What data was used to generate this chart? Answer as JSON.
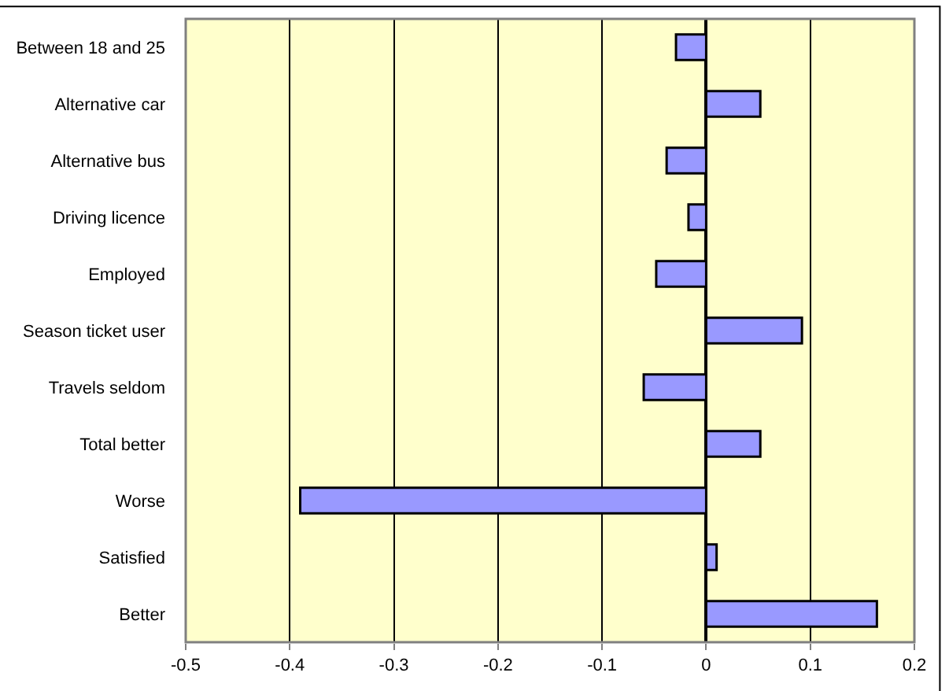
{
  "chart_data": {
    "type": "bar",
    "orientation": "horizontal",
    "categories": [
      "Between 18 and 25",
      "Alternative car",
      "Alternative bus",
      "Driving licence",
      "Employed",
      "Season ticket user",
      "Travels seldom",
      "Total better",
      "Worse",
      "Satisfied",
      "Better"
    ],
    "values": [
      -0.029,
      0.052,
      -0.038,
      -0.017,
      -0.048,
      0.092,
      -0.06,
      0.052,
      -0.39,
      0.01,
      0.164
    ],
    "color": "#9999ff",
    "xlim": [
      -0.5,
      0.2
    ],
    "xticks": [
      -0.5,
      -0.4,
      -0.3,
      -0.2,
      -0.1,
      0,
      0.1,
      0.2
    ],
    "grid": "x",
    "legend": false
  }
}
